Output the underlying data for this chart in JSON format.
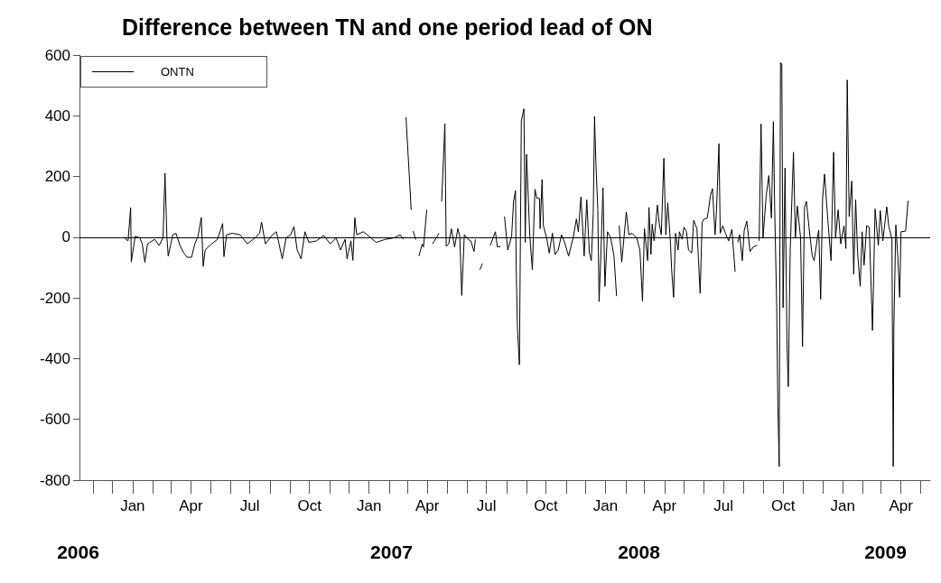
{
  "chart_data": {
    "type": "line",
    "title": "Difference between TN and one period lead of ON",
    "annotations": [
      "2006",
      "2007",
      "2008",
      "2009"
    ],
    "x": [
      "2005-12-18",
      "2005-12-25",
      "2005-12-29",
      "2005-12-30",
      "2006-01-05",
      "2006-01-12",
      "2006-01-16",
      "2006-01-20",
      "2006-01-24",
      "2006-02-04",
      "2006-02-11",
      "2006-02-17",
      "2006-02-20",
      "2006-02-23",
      "2006-02-25",
      "2006-03-04",
      "2006-03-09",
      "2006-03-15",
      "2006-03-21",
      "2006-03-26",
      "2006-04-02",
      "2006-04-07",
      "2006-04-12",
      "2006-04-17",
      "2006-04-20",
      "2006-04-23",
      "2006-05-03",
      "2006-05-12",
      "2006-05-20",
      "2006-05-22",
      "2006-05-26",
      "2006-06-04",
      "2006-06-16",
      "2006-06-27",
      "2006-07-09",
      "2006-07-16",
      "2006-07-19",
      "2006-07-25",
      "2006-08-05",
      "2006-08-11",
      "2006-08-15",
      "2006-08-20",
      "2006-08-26",
      "2006-09-02",
      "2006-09-07",
      "2006-09-12",
      "2006-09-18",
      "2006-09-24",
      "2006-09-30",
      "2006-10-12",
      "2006-10-23",
      "2006-11-02",
      "2006-11-11",
      "2006-11-18",
      "2006-11-25",
      "2006-11-28",
      "2006-12-04",
      "2006-12-07",
      "2006-12-10",
      "2006-12-13",
      "2006-12-23",
      "2006-12-29",
      "2007-01-12",
      "2007-01-26",
      "2007-02-09",
      "2007-02-18",
      "2007-02-23",
      "2007-02-25",
      "2007-02-27",
      "2007-03-07",
      "2007-03-08",
      "2007-03-10",
      "2007-03-14",
      "2007-03-16",
      "2007-03-19",
      "2007-03-24",
      "2007-03-26",
      "2007-03-31",
      "2007-04-02",
      "2007-04-09",
      "2007-04-19",
      "2007-04-20",
      "2007-04-23",
      "2007-04-26",
      "2007-04-28",
      "2007-04-30",
      "2007-05-04",
      "2007-05-08",
      "2007-05-13",
      "2007-05-18",
      "2007-05-21",
      "2007-05-24",
      "2007-05-28",
      "2007-06-03",
      "2007-06-07",
      "2007-06-12",
      "2007-06-14",
      "2007-06-16",
      "2007-06-21",
      "2007-06-25",
      "2007-06-28",
      "2007-07-07",
      "2007-07-15",
      "2007-07-18",
      "2007-07-23",
      "2007-07-26",
      "2007-07-29",
      "2007-08-03",
      "2007-08-09",
      "2007-08-12",
      "2007-08-15",
      "2007-08-16",
      "2007-08-18",
      "2007-08-21",
      "2007-08-24",
      "2007-08-28",
      "2007-08-30",
      "2007-09-01",
      "2007-09-06",
      "2007-09-10",
      "2007-09-14",
      "2007-09-17",
      "2007-09-21",
      "2007-09-22",
      "2007-09-25",
      "2007-09-27",
      "2007-10-02",
      "2007-10-06",
      "2007-10-11",
      "2007-10-15",
      "2007-10-20",
      "2007-10-25",
      "2007-10-29",
      "2007-11-05",
      "2007-11-12",
      "2007-11-17",
      "2007-11-20",
      "2007-11-24",
      "2007-11-29",
      "2007-12-03",
      "2007-12-07",
      "2007-12-10",
      "2007-12-13",
      "2007-12-15",
      "2007-12-17",
      "2007-12-20",
      "2007-12-22",
      "2007-12-25",
      "2007-12-28",
      "2007-12-31",
      "2008-01-04",
      "2008-01-09",
      "2008-01-14",
      "2008-01-18",
      "2008-01-20",
      "2008-01-22",
      "2008-01-26",
      "2008-02-02",
      "2008-02-06",
      "2008-02-11",
      "2008-02-18",
      "2008-02-23",
      "2008-02-27",
      "2008-03-01",
      "2008-03-06",
      "2008-03-08",
      "2008-03-11",
      "2008-03-13",
      "2008-03-16",
      "2008-03-21",
      "2008-03-24",
      "2008-03-27",
      "2008-03-31",
      "2008-04-03",
      "2008-04-06",
      "2008-04-10",
      "2008-04-12",
      "2008-04-15",
      "2008-04-18",
      "2008-04-22",
      "2008-04-24",
      "2008-04-28",
      "2008-05-01",
      "2008-05-05",
      "2008-05-08",
      "2008-05-13",
      "2008-05-16",
      "2008-05-21",
      "2008-05-26",
      "2008-05-29",
      "2008-06-01",
      "2008-06-06",
      "2008-06-11",
      "2008-06-14",
      "2008-06-18",
      "2008-06-20",
      "2008-06-24",
      "2008-06-26",
      "2008-06-30",
      "2008-07-04",
      "2008-07-09",
      "2008-07-14",
      "2008-07-19",
      "2008-07-21",
      "2008-07-23",
      "2008-07-26",
      "2008-07-30",
      "2008-08-02",
      "2008-08-06",
      "2008-08-11",
      "2008-08-16",
      "2008-08-22",
      "2008-08-24",
      "2008-08-25",
      "2008-08-28",
      "2008-08-31",
      "2008-09-05",
      "2008-09-09",
      "2008-09-13",
      "2008-09-16",
      "2008-09-18",
      "2008-09-21",
      "2008-09-23",
      "2008-09-25",
      "2008-09-27",
      "2008-09-29",
      "2008-10-01",
      "2008-10-04",
      "2008-10-07",
      "2008-10-09",
      "2008-10-12",
      "2008-10-17",
      "2008-10-20",
      "2008-10-23",
      "2008-10-28",
      "2008-10-31",
      "2008-11-03",
      "2008-11-06",
      "2008-11-10",
      "2008-11-15",
      "2008-11-18",
      "2008-11-23",
      "2008-11-25",
      "2008-11-28",
      "2008-12-01",
      "2008-12-04",
      "2008-12-09",
      "2008-12-14",
      "2008-12-18",
      "2008-12-21",
      "2008-12-25",
      "2008-12-29",
      "2009-01-03",
      "2009-01-06",
      "2009-01-08",
      "2009-01-11",
      "2009-01-15",
      "2009-01-18",
      "2009-01-21",
      "2009-01-24",
      "2009-01-28",
      "2009-01-31",
      "2009-02-03",
      "2009-02-07",
      "2009-02-11",
      "2009-02-16",
      "2009-02-20",
      "2009-02-25",
      "2009-02-28",
      "2009-03-04",
      "2009-03-10",
      "2009-03-13",
      "2009-03-18",
      "2009-03-20",
      "2009-03-21",
      "2009-03-24",
      "2009-03-27",
      "2009-03-30",
      "2009-04-01",
      "2009-04-08",
      "2009-04-12"
    ],
    "series": [
      {
        "name": "ONTN",
        "color": "#000000",
        "values": [
          0,
          -12,
          97,
          -81,
          3,
          -2,
          -22,
          -83,
          -22,
          -7,
          -27,
          -2,
          211,
          -2,
          -62,
          8,
          13,
          -27,
          -52,
          -66,
          -66,
          -22,
          3,
          65,
          -96,
          -42,
          -22,
          -7,
          45,
          -64,
          8,
          13,
          8,
          -22,
          -2,
          13,
          50,
          -22,
          8,
          18,
          -22,
          -71,
          -2,
          8,
          35,
          -42,
          -71,
          18,
          -17,
          -12,
          6,
          -22,
          -2,
          -42,
          -7,
          -71,
          -12,
          -76,
          64,
          8,
          18,
          8,
          -17,
          -7,
          -2,
          8,
          -7,
          null,
          395,
          90,
          null,
          20,
          -8,
          null,
          -62,
          -22,
          -32,
          90,
          null,
          -22,
          13,
          null,
          118,
          268,
          374,
          -30,
          -22,
          28,
          -32,
          28,
          3,
          -192,
          8,
          -7,
          -12,
          -47,
          -7,
          null,
          -107,
          -87,
          null,
          -27,
          18,
          -32,
          -30,
          null,
          68,
          -42,
          3,
          118,
          153,
          -97,
          -300,
          -420,
          383,
          423,
          -17,
          273,
          8,
          -107,
          158,
          128,
          128,
          28,
          190,
          38,
          -2,
          -52,
          13,
          -57,
          -42,
          8,
          -12,
          -62,
          -2,
          60,
          18,
          133,
          -62,
          123,
          -52,
          -77,
          78,
          398,
          248,
          93,
          -212,
          -42,
          163,
          -162,
          18,
          -2,
          -62,
          -194,
          null,
          38,
          -82,
          83,
          8,
          13,
          -2,
          -42,
          -210,
          28,
          -77,
          98,
          -57,
          43,
          -12,
          106,
          43,
          8,
          260,
          8,
          113,
          -12,
          -107,
          -198,
          13,
          -42,
          18,
          -7,
          33,
          18,
          -42,
          -52,
          56,
          28,
          -185,
          48,
          60,
          63,
          138,
          160,
          8,
          78,
          308,
          13,
          38,
          13,
          -12,
          26,
          -114,
          null,
          -17,
          8,
          -77,
          23,
          53,
          -47,
          -32,
          -27,
          null,
          -12,
          373,
          -2,
          138,
          203,
          63,
          381,
          98,
          -212,
          -562,
          -755,
          575,
          570,
          -232,
          228,
          -352,
          -492,
          -42,
          280,
          -2,
          103,
          -2,
          -360,
          98,
          118,
          33,
          -62,
          -77,
          -2,
          23,
          -204,
          128,
          208,
          58,
          -77,
          280,
          -2,
          90,
          -22,
          38,
          -37,
          518,
          68,
          185,
          -122,
          123,
          -52,
          -162,
          18,
          -92,
          38,
          33,
          -307,
          93,
          -27,
          88,
          -12,
          100,
          38,
          -7,
          -755,
          -297,
          40,
          -62,
          -198,
          18,
          20,
          120
        ]
      }
    ],
    "xlim": [
      "2005-10-11",
      "2009-05-16"
    ],
    "xticks": [
      {
        "value": "2006-01-01",
        "label": "Jan"
      },
      {
        "value": "2006-02-01",
        "label": null
      },
      {
        "value": "2006-03-01",
        "label": null
      },
      {
        "value": "2006-04-01",
        "label": "Apr"
      },
      {
        "value": "2006-05-01",
        "label": null
      },
      {
        "value": "2006-06-01",
        "label": null
      },
      {
        "value": "2006-07-01",
        "label": "Jul"
      },
      {
        "value": "2006-08-01",
        "label": null
      },
      {
        "value": "2006-09-01",
        "label": null
      },
      {
        "value": "2006-10-01",
        "label": "Oct"
      },
      {
        "value": "2006-11-01",
        "label": null
      },
      {
        "value": "2006-12-01",
        "label": null
      },
      {
        "value": "2007-01-01",
        "label": "Jan"
      },
      {
        "value": "2007-02-01",
        "label": null
      },
      {
        "value": "2007-03-01",
        "label": null
      },
      {
        "value": "2007-04-01",
        "label": "Apr"
      },
      {
        "value": "2007-05-01",
        "label": null
      },
      {
        "value": "2007-06-01",
        "label": null
      },
      {
        "value": "2007-07-01",
        "label": "Jul"
      },
      {
        "value": "2007-08-01",
        "label": null
      },
      {
        "value": "2007-09-01",
        "label": null
      },
      {
        "value": "2007-10-01",
        "label": "Oct"
      },
      {
        "value": "2007-11-01",
        "label": null
      },
      {
        "value": "2007-12-01",
        "label": null
      },
      {
        "value": "2008-01-01",
        "label": "Jan"
      },
      {
        "value": "2008-02-01",
        "label": null
      },
      {
        "value": "2008-03-01",
        "label": null
      },
      {
        "value": "2008-04-01",
        "label": "Apr"
      },
      {
        "value": "2008-05-01",
        "label": null
      },
      {
        "value": "2008-06-01",
        "label": null
      },
      {
        "value": "2008-07-01",
        "label": "Jul"
      },
      {
        "value": "2008-08-01",
        "label": null
      },
      {
        "value": "2008-09-01",
        "label": null
      },
      {
        "value": "2008-10-01",
        "label": "Oct"
      },
      {
        "value": "2008-11-01",
        "label": null
      },
      {
        "value": "2008-12-01",
        "label": null
      },
      {
        "value": "2009-01-01",
        "label": "Jan"
      },
      {
        "value": "2009-02-01",
        "label": null
      },
      {
        "value": "2009-03-01",
        "label": null
      },
      {
        "value": "2009-04-01",
        "label": "Apr"
      }
    ],
    "ylim": [
      -800,
      600
    ],
    "yticks": [
      -800,
      -600,
      -400,
      -200,
      0,
      200,
      400,
      600
    ],
    "ref_lines": [
      {
        "axis": "y",
        "value": 0,
        "color": "#000000"
      }
    ],
    "grid": false,
    "legend": "top left",
    "marker": "none",
    "line_style": "solid"
  }
}
